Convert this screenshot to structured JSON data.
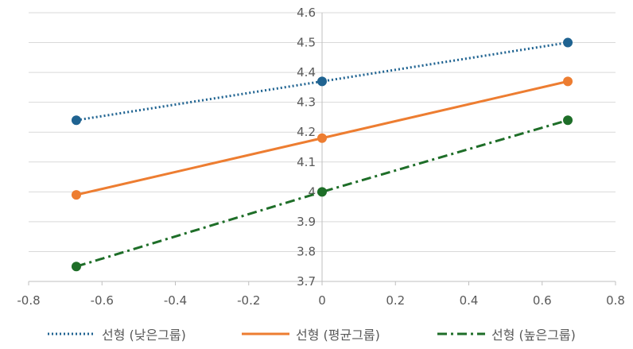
{
  "chart_data": {
    "type": "line",
    "title": "",
    "xlabel": "",
    "ylabel": "",
    "xlim": [
      -0.8,
      0.8
    ],
    "ylim": [
      3.7,
      4.6
    ],
    "x_ticks": [
      "-0.8",
      "-0.6",
      "-0.4",
      "-0.2",
      "0",
      "0.2",
      "0.4",
      "0.6",
      "0.8"
    ],
    "y_ticks": [
      "3.7",
      "3.8",
      "3.9",
      "4",
      "4.1",
      "4.2",
      "4.3",
      "4.4",
      "4.5",
      "4.6"
    ],
    "grid": "horizontal",
    "legend_position": "bottom",
    "series": [
      {
        "name": "선형 (낮은그룹)",
        "color": "#1f6391",
        "style": "dotted",
        "x": [
          -0.67,
          0,
          0.67
        ],
        "y": [
          4.24,
          4.37,
          4.5
        ]
      },
      {
        "name": "선형 (평균그룹)",
        "color": "#ed7d31",
        "style": "solid",
        "x": [
          -0.67,
          0,
          0.67
        ],
        "y": [
          3.99,
          4.18,
          4.37
        ]
      },
      {
        "name": "선형 (높은그룹)",
        "color": "#1e6e28",
        "style": "dashdot",
        "x": [
          -0.67,
          0,
          0.67
        ],
        "y": [
          3.75,
          4.0,
          4.24
        ]
      }
    ]
  }
}
